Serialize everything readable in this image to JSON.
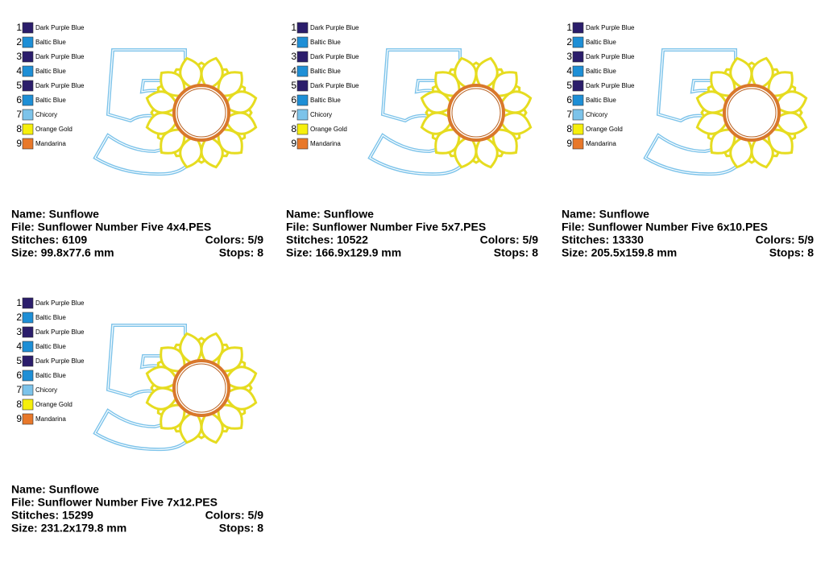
{
  "threads": [
    {
      "number": 1,
      "name": "Dark Purple Blue",
      "color": "#2b1d6b"
    },
    {
      "number": 2,
      "name": "Baltic Blue",
      "color": "#1e8fd6"
    },
    {
      "number": 3,
      "name": "Dark Purple Blue",
      "color": "#2b1d6b"
    },
    {
      "number": 4,
      "name": "Baltic Blue",
      "color": "#1e8fd6"
    },
    {
      "number": 5,
      "name": "Dark Purple Blue",
      "color": "#2b1d6b"
    },
    {
      "number": 6,
      "name": "Baltic Blue",
      "color": "#1e8fd6"
    },
    {
      "number": 7,
      "name": "Chicory",
      "color": "#7cc3ea"
    },
    {
      "number": 8,
      "name": "Orange Gold",
      "color": "#f6ef0c"
    },
    {
      "number": 9,
      "name": "Mandarina",
      "color": "#e8782a"
    }
  ],
  "panels": [
    {
      "name": "Name: Sunflowe",
      "file": "File: Sunflower Number Five 4x4.PES",
      "stitches": "Stitches: 6109",
      "colors": "Colors: 5/9",
      "size": "Size: 99.8x77.6 mm",
      "stops": "Stops: 8"
    },
    {
      "name": "Name: Sunflowe",
      "file": "File: Sunflower Number Five 5x7.PES",
      "stitches": "Stitches: 10522",
      "colors": "Colors: 5/9",
      "size": "Size: 166.9x129.9 mm",
      "stops": "Stops: 8"
    },
    {
      "name": "Name: Sunflowe",
      "file": "File: Sunflower Number Five 6x10.PES",
      "stitches": "Stitches: 13330",
      "colors": "Colors: 5/9",
      "size": "Size: 205.5x159.8 mm",
      "stops": "Stops: 8"
    },
    {
      "name": "Name: Sunflowe",
      "file": "File: Sunflower Number Five 7x12.PES",
      "stitches": "Stitches: 15299",
      "colors": "Colors: 5/9",
      "size": "Size: 231.2x179.8 mm",
      "stops": "Stops: 8"
    }
  ]
}
